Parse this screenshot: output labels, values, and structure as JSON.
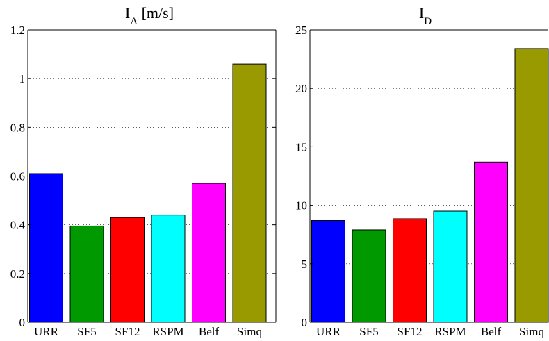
{
  "chart_data": [
    {
      "type": "bar",
      "title": "I_A [m/s]",
      "title_main": "I",
      "title_sub": "A",
      "title_rest": " [m/s]",
      "categories": [
        "URR",
        "SF5",
        "SF12",
        "RSPM",
        "Belf",
        "Simq"
      ],
      "values": [
        0.61,
        0.395,
        0.43,
        0.44,
        0.57,
        1.06
      ],
      "colors": [
        "#0000ff",
        "#009900",
        "#ff0000",
        "#00ffff",
        "#ff00ff",
        "#999900"
      ],
      "ylim": [
        0,
        1.2
      ],
      "yticks": [
        0,
        0.2,
        0.4,
        0.6,
        0.8,
        1,
        1.2
      ],
      "ytick_labels": [
        "0",
        "0.2",
        "0.4",
        "0.6",
        "0.8",
        "1",
        "1.2"
      ],
      "grid": "y-dotted",
      "xlabel": "",
      "ylabel": ""
    },
    {
      "type": "bar",
      "title": "I_D",
      "title_main": "I",
      "title_sub": "D",
      "title_rest": "",
      "categories": [
        "URR",
        "SF5",
        "SF12",
        "RSPM",
        "Belf",
        "Simq"
      ],
      "values": [
        8.7,
        7.9,
        8.85,
        9.5,
        13.7,
        23.4
      ],
      "colors": [
        "#0000ff",
        "#009900",
        "#ff0000",
        "#00ffff",
        "#ff00ff",
        "#999900"
      ],
      "ylim": [
        0,
        25
      ],
      "yticks": [
        0,
        5,
        10,
        15,
        20,
        25
      ],
      "ytick_labels": [
        "0",
        "5",
        "10",
        "15",
        "20",
        "25"
      ],
      "grid": "y-dotted",
      "xlabel": "",
      "ylabel": ""
    }
  ]
}
